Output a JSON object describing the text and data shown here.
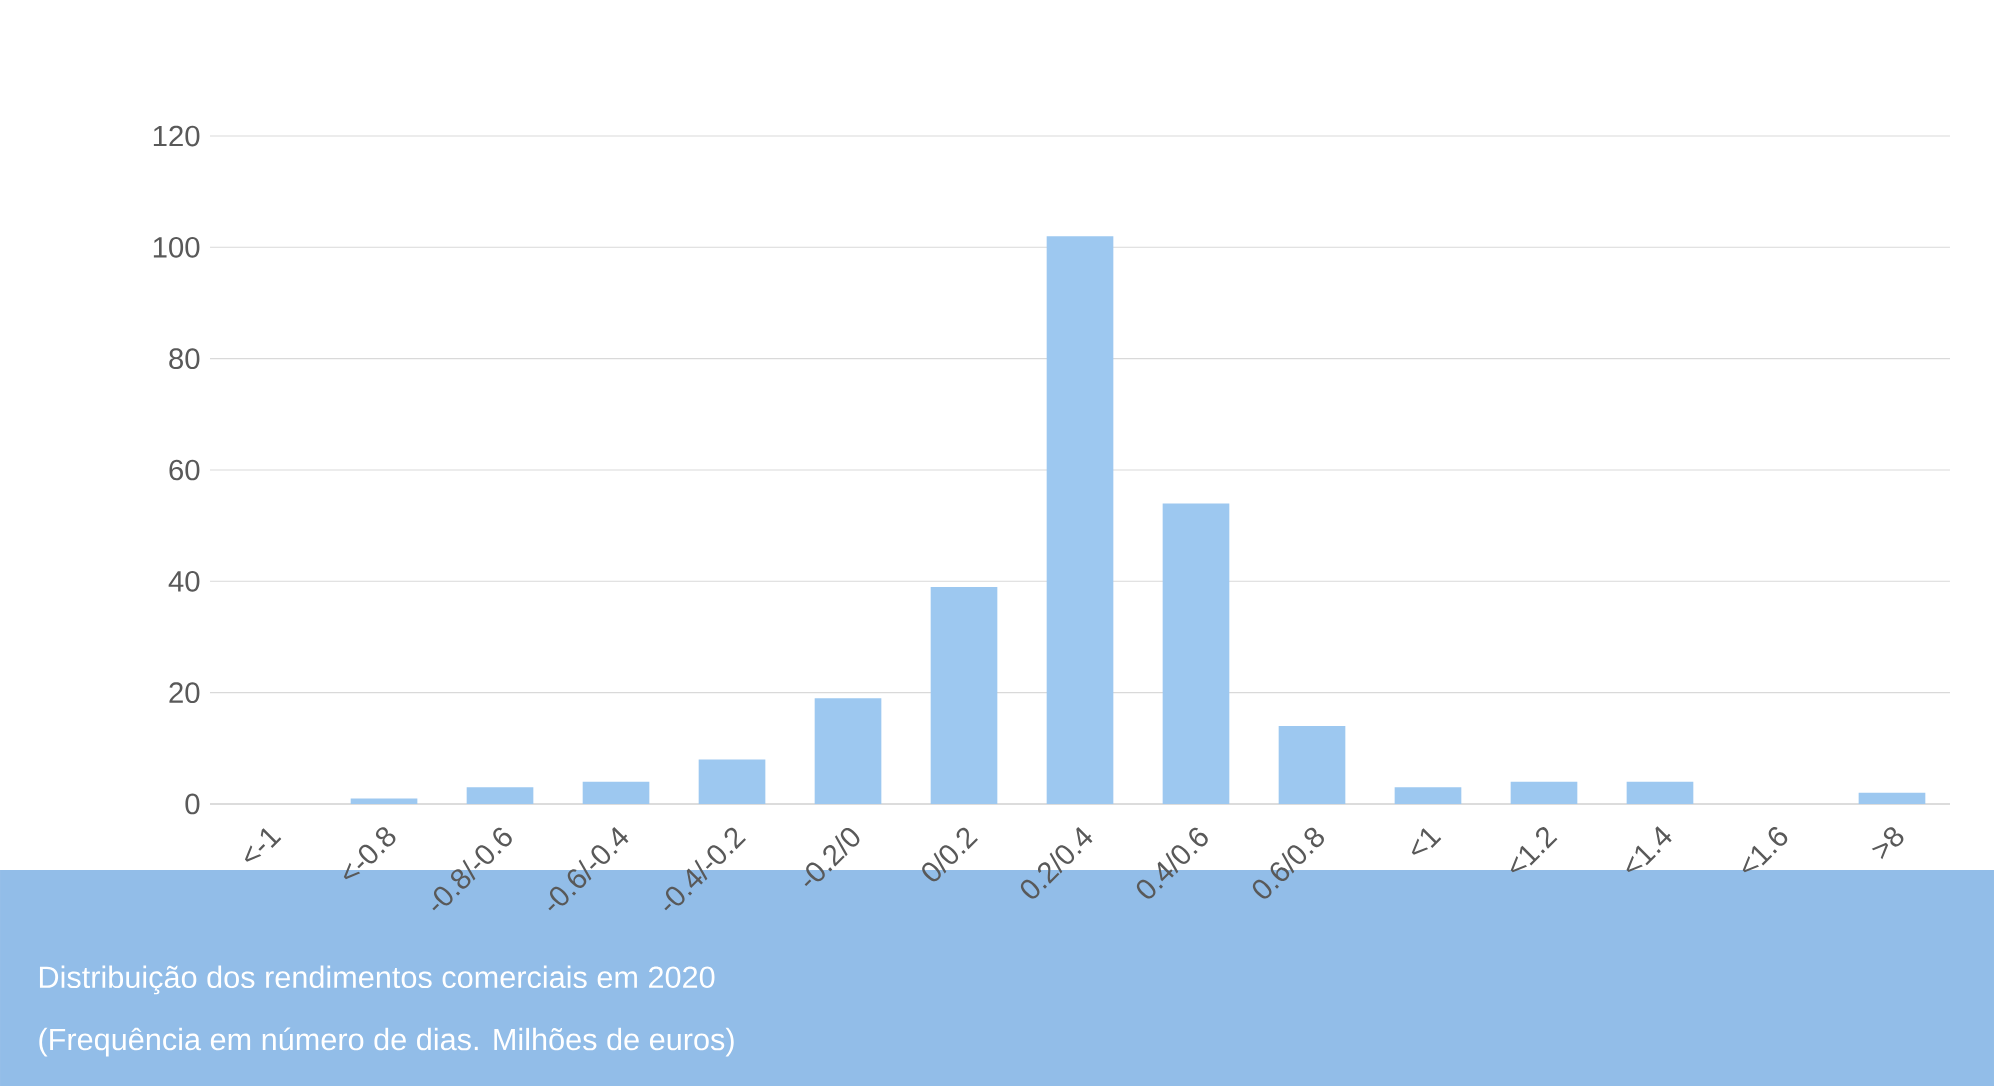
{
  "chart_data": {
    "type": "bar",
    "title": "Distribuição dos rendimentos comerciais em 2020",
    "subtitle": "(Frequência em número de dias. Milhões de euros)",
    "categories": [
      "<-1",
      "<-0.8",
      "-0.8/-0.6",
      "-0.6/-0.4",
      "-0.4/-0.2",
      "-0.2/0",
      "0/0.2",
      "0.2/0.4",
      "0.4/0.6",
      "0.6/0.8",
      "<1",
      "<1.2",
      "<1.4",
      "<1.6",
      ">8"
    ],
    "values": [
      0,
      1,
      3,
      4,
      8,
      19,
      39,
      102,
      54,
      14,
      3,
      4,
      4,
      0,
      2
    ],
    "color": "#9dc8f0",
    "ylim": [
      0,
      120
    ],
    "yticks": [
      0,
      20,
      40,
      60,
      80,
      100,
      120
    ],
    "grid": "y"
  }
}
